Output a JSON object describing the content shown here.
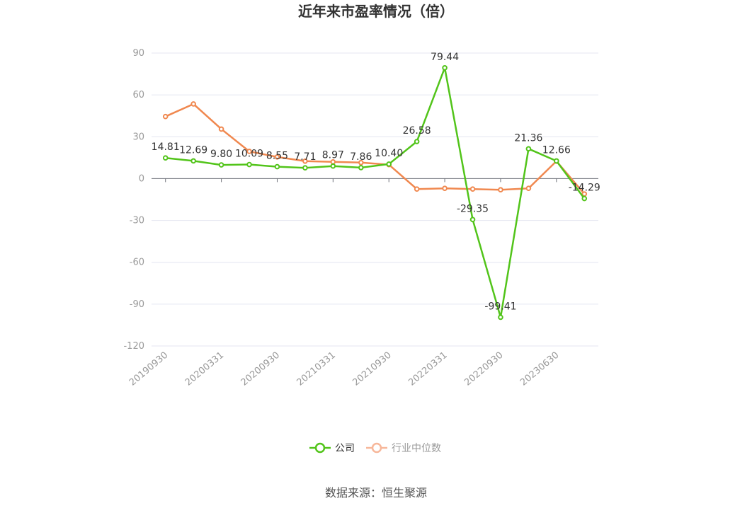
{
  "chart_data": {
    "type": "line",
    "title": "近年来市盈率情况（倍）",
    "source_note": "数据来源：恒生聚源",
    "ylim": [
      -120,
      90
    ],
    "yticks": [
      90,
      60,
      30,
      0,
      -30,
      -60,
      -90,
      -120
    ],
    "xtick_labels": [
      "20190930",
      "20200331",
      "20200930",
      "20210331",
      "20210930",
      "20220331",
      "20220930",
      "20230630"
    ],
    "legend_position": "bottom",
    "grid": true,
    "series": [
      {
        "name": "公司",
        "color": "#52c41a",
        "values": [
          14.81,
          12.69,
          9.8,
          10.09,
          8.55,
          7.71,
          8.97,
          7.86,
          10.4,
          26.58,
          79.44,
          -29.35,
          -99.41,
          21.36,
          12.66,
          -14.29
        ],
        "labels": [
          "14.81",
          "12.69",
          "9.80",
          "10.09",
          "8.55",
          "7.71",
          "8.97",
          "7.86",
          "10.40",
          "26.58",
          "79.44",
          "-29.35",
          "-99.41",
          "21.36",
          "12.66",
          "-14.29"
        ]
      },
      {
        "name": "行业中位数",
        "color": "#f0884f",
        "values": [
          44.5,
          53.5,
          35.5,
          19.5,
          15.5,
          12.5,
          12.0,
          11.5,
          10.0,
          -7.5,
          -7.0,
          -7.5,
          -8.0,
          -7.0,
          12.5,
          -11.0
        ]
      }
    ]
  }
}
